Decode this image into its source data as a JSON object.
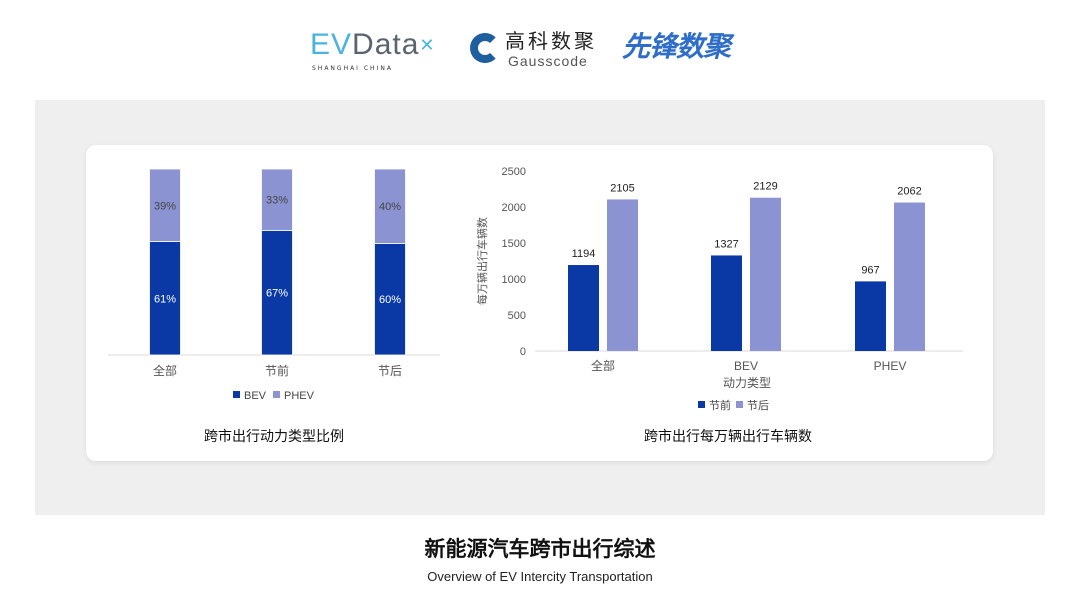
{
  "header": {
    "logo_evdata": "EVData",
    "logo_evdata_sub": "SHANGHAI CHINA",
    "logo_gauss_cn": "高科数聚",
    "logo_gauss_en": "Gausscode",
    "logo_xianfeng": "先锋数聚"
  },
  "footer": {
    "title": "新能源汽车跨市出行综述",
    "subtitle": "Overview of EV Intercity Transportation"
  },
  "colors": {
    "BEV": "#0a39a5",
    "PHEV": "#8b93d2",
    "节前": "#0a39a5",
    "节后": "#8b93d2",
    "panel": "#efefef"
  },
  "chart_data": [
    {
      "type": "bar",
      "stacked": true,
      "caption": "跨市出行动力类型比例",
      "categories": [
        "全部",
        "节前",
        "节后"
      ],
      "series": [
        {
          "name": "BEV",
          "values": [
            61,
            67,
            60
          ],
          "labels": [
            "61%",
            "67%",
            "60%"
          ]
        },
        {
          "name": "PHEV",
          "values": [
            39,
            33,
            40
          ],
          "labels": [
            "39%",
            "33%",
            "40%"
          ]
        }
      ],
      "ylim": [
        0,
        100
      ],
      "legend": "bottom",
      "grid": false
    },
    {
      "type": "bar",
      "caption": "跨市出行每万辆出行车辆数",
      "categories": [
        "全部",
        "BEV",
        "PHEV"
      ],
      "xlabel": "动力类型",
      "ylabel": "每万辆出行车辆数",
      "ylim": [
        0,
        2500
      ],
      "yticks": [
        "0",
        "500",
        "1000",
        "1500",
        "2000",
        "2500"
      ],
      "series": [
        {
          "name": "节前",
          "values": [
            1194,
            1327,
            967
          ]
        },
        {
          "name": "节后",
          "values": [
            2105,
            2129,
            2062
          ]
        }
      ],
      "legend": "bottom",
      "grid": false
    }
  ]
}
